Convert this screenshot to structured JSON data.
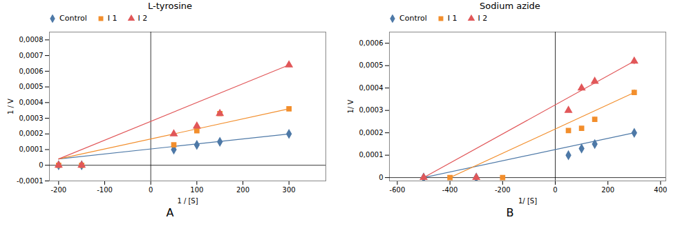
{
  "chart_data": [
    {
      "type": "scatter",
      "title": "L-tyrosine",
      "caption": "A",
      "xlabel": "1 / [S]",
      "ylabel": "1 / V",
      "xlim": [
        -220,
        380
      ],
      "ylim": [
        -0.0001,
        0.00085
      ],
      "xticks": [
        -200,
        -100,
        0,
        100,
        200,
        300
      ],
      "yticks": [
        {
          "value": -0.0001,
          "label": "-0,0001"
        },
        0,
        {
          "value": 0.0001,
          "label": "0,0001"
        },
        {
          "value": 0.0002,
          "label": "0,0002"
        },
        {
          "value": 0.0003,
          "label": "0,0003"
        },
        {
          "value": 0.0004,
          "label": "0,0004"
        },
        {
          "value": 0.0005,
          "label": "0,0005"
        },
        {
          "value": 0.0006,
          "label": "0,0006"
        },
        {
          "value": 0.0007,
          "label": "0,0007"
        },
        {
          "value": 0.0008,
          "label": "0,0008"
        }
      ],
      "legend": "upper left",
      "series": [
        {
          "name": "Control",
          "marker": "diamond",
          "x": [
            -200,
            -150,
            50,
            100,
            150,
            300
          ],
          "values": [
            0.0,
            0.0,
            0.0001,
            0.00013,
            0.00015,
            0.0002
          ],
          "y_err": [
            4e-06,
            4e-06,
            5e-06,
            5e-06,
            6e-06,
            7e-06
          ],
          "line_x": [
            -200,
            300
          ],
          "line_y": [
            4e-05,
            0.0002
          ]
        },
        {
          "name": "I 1",
          "marker": "square",
          "x": [
            -200,
            -150,
            50,
            100,
            150,
            300
          ],
          "values": [
            0.0,
            0.0,
            0.00013,
            0.00022,
            0.00033,
            0.00036
          ],
          "y_err": [
            4e-06,
            4e-06,
            6e-06,
            8e-06,
            1e-05,
            1.2e-05
          ],
          "line_x": [
            -200,
            300
          ],
          "line_y": [
            4e-05,
            0.00036
          ]
        },
        {
          "name": "I 2",
          "marker": "triangle",
          "x": [
            -200,
            -150,
            50,
            100,
            150,
            300
          ],
          "values": [
            0.0,
            0.0,
            0.0002,
            0.00025,
            0.00033,
            0.00064
          ],
          "y_err": [
            4e-06,
            4e-06,
            8e-06,
            1e-05,
            1.2e-05,
            1.5e-05
          ],
          "line_x": [
            -200,
            300
          ],
          "line_y": [
            4e-05,
            0.00064
          ]
        }
      ]
    },
    {
      "type": "scatter",
      "title": "Sodium azide",
      "caption": "B",
      "xlabel": "1/ [S]",
      "ylabel": "1/ V",
      "xlim": [
        -630,
        420
      ],
      "ylim": [
        -1.5e-05,
        0.00065
      ],
      "xticks": [
        -600,
        -400,
        -200,
        0,
        200,
        400
      ],
      "yticks": [
        0,
        {
          "value": 0.0001,
          "label": "0,0001"
        },
        {
          "value": 0.0002,
          "label": "0,0002"
        },
        {
          "value": 0.0003,
          "label": "0,0003"
        },
        {
          "value": 0.0004,
          "label": "0,0004"
        },
        {
          "value": 0.0005,
          "label": "0,0005"
        },
        {
          "value": 0.0006,
          "label": "0,0006"
        }
      ],
      "legend": "upper left",
      "series": [
        {
          "name": "Control",
          "marker": "diamond",
          "x": [
            -500,
            -300,
            50,
            100,
            150,
            300
          ],
          "values": [
            0.0,
            0.0,
            0.0001,
            0.00013,
            0.00015,
            0.0002
          ],
          "y_err": [
            4e-06,
            4e-06,
            5e-06,
            6e-06,
            6e-06,
            8e-06
          ],
          "line_x": [
            -500,
            300
          ],
          "line_y": [
            0.0,
            0.0002
          ]
        },
        {
          "name": "I 1",
          "marker": "square",
          "x": [
            -400,
            -200,
            50,
            100,
            150,
            300
          ],
          "values": [
            0.0,
            0.0,
            0.00021,
            0.00022,
            0.00026,
            0.00038
          ],
          "y_err": [
            4e-06,
            4e-06,
            8e-06,
            8e-06,
            1e-05,
            1.2e-05
          ],
          "line_x": [
            -400,
            300
          ],
          "line_y": [
            0.0,
            0.00038
          ]
        },
        {
          "name": "I 2",
          "marker": "triangle",
          "x": [
            -500,
            -300,
            50,
            100,
            150,
            300
          ],
          "values": [
            0.0,
            0.0,
            0.0003,
            0.0004,
            0.00043,
            0.00052
          ],
          "y_err": [
            4e-06,
            4e-06,
            1e-05,
            1.2e-05,
            1.2e-05,
            1.5e-05
          ],
          "line_x": [
            -500,
            300
          ],
          "line_y": [
            0.0,
            0.00052
          ]
        }
      ]
    }
  ]
}
